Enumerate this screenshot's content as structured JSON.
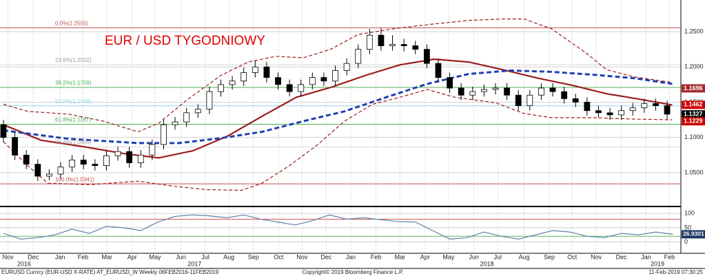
{
  "chart_data": [
    {
      "type": "candlestick",
      "title": "EUR / USD TYGODNIOWY",
      "x": [
        0,
        2,
        4,
        6,
        8,
        10,
        12,
        14,
        16,
        18,
        20,
        22,
        24,
        26,
        28,
        30,
        32,
        34,
        36,
        38,
        40,
        42,
        44,
        46,
        48,
        50,
        52,
        54,
        56,
        58,
        60,
        62,
        64,
        66,
        68,
        70,
        72,
        74,
        76,
        78,
        80,
        82,
        84,
        86,
        88,
        90,
        92,
        94,
        96,
        98,
        100,
        102,
        104,
        106,
        108,
        110,
        112,
        114,
        116
      ],
      "open": [
        1.118,
        1.1,
        1.075,
        1.062,
        1.045,
        1.048,
        1.058,
        1.068,
        1.062,
        1.06,
        1.074,
        1.08,
        1.064,
        1.075,
        1.09,
        1.118,
        1.122,
        1.135,
        1.14,
        1.165,
        1.175,
        1.18,
        1.192,
        1.2,
        1.185,
        1.175,
        1.165,
        1.175,
        1.185,
        1.18,
        1.195,
        1.205,
        1.225,
        1.245,
        1.23,
        1.232,
        1.23,
        1.225,
        1.205,
        1.185,
        1.17,
        1.16,
        1.165,
        1.168,
        1.17,
        1.16,
        1.145,
        1.16,
        1.17,
        1.165,
        1.155,
        1.15,
        1.138,
        1.135,
        1.132,
        1.138,
        1.142,
        1.148,
        1.145
      ],
      "high": [
        1.125,
        1.107,
        1.082,
        1.069,
        1.055,
        1.065,
        1.075,
        1.075,
        1.069,
        1.081,
        1.087,
        1.087,
        1.082,
        1.097,
        1.125,
        1.129,
        1.142,
        1.147,
        1.172,
        1.182,
        1.187,
        1.199,
        1.209,
        1.207,
        1.192,
        1.182,
        1.182,
        1.192,
        1.192,
        1.202,
        1.212,
        1.232,
        1.254,
        1.255,
        1.245,
        1.24,
        1.237,
        1.232,
        1.212,
        1.192,
        1.177,
        1.172,
        1.175,
        1.177,
        1.177,
        1.167,
        1.167,
        1.177,
        1.177,
        1.172,
        1.162,
        1.157,
        1.145,
        1.142,
        1.145,
        1.149,
        1.155,
        1.155,
        1.152
      ],
      "low": [
        1.093,
        1.068,
        1.055,
        1.038,
        1.039,
        1.041,
        1.051,
        1.055,
        1.053,
        1.053,
        1.067,
        1.057,
        1.057,
        1.068,
        1.083,
        1.111,
        1.115,
        1.128,
        1.133,
        1.158,
        1.168,
        1.173,
        1.185,
        1.178,
        1.168,
        1.158,
        1.158,
        1.168,
        1.173,
        1.173,
        1.188,
        1.198,
        1.218,
        1.223,
        1.223,
        1.222,
        1.218,
        1.198,
        1.178,
        1.163,
        1.153,
        1.153,
        1.158,
        1.161,
        1.153,
        1.138,
        1.138,
        1.153,
        1.158,
        1.148,
        1.143,
        1.131,
        1.128,
        1.125,
        1.125,
        1.131,
        1.135,
        1.138,
        1.126
      ],
      "close": [
        1.1,
        1.075,
        1.062,
        1.045,
        1.048,
        1.058,
        1.068,
        1.062,
        1.06,
        1.074,
        1.08,
        1.064,
        1.075,
        1.09,
        1.118,
        1.122,
        1.135,
        1.14,
        1.165,
        1.175,
        1.18,
        1.192,
        1.2,
        1.185,
        1.175,
        1.165,
        1.175,
        1.185,
        1.18,
        1.195,
        1.205,
        1.225,
        1.245,
        1.23,
        1.232,
        1.23,
        1.225,
        1.205,
        1.185,
        1.17,
        1.16,
        1.165,
        1.168,
        1.17,
        1.16,
        1.145,
        1.16,
        1.17,
        1.165,
        1.155,
        1.15,
        1.138,
        1.135,
        1.132,
        1.138,
        1.142,
        1.148,
        1.145,
        1.133
      ],
      "up_color": "#ffffff",
      "down_color": "#000000",
      "xlim": [
        -0.6,
        118.4
      ],
      "ylim": [
        1.004,
        1.293
      ],
      "yticks": [
        {
          "value": 1.05,
          "label": "1.0500"
        },
        {
          "value": 1.1,
          "label": "1.1000"
        },
        {
          "value": 1.15,
          "label": "1.1500"
        },
        {
          "value": 1.2,
          "label": "1.2000"
        },
        {
          "value": 1.25,
          "label": "1.2500"
        }
      ],
      "xticks": [
        {
          "value": 0.8,
          "label": "Nov"
        },
        {
          "value": 5.2,
          "label": "Dec"
        },
        {
          "value": 9.9,
          "label": "Jan"
        },
        {
          "value": 13.9,
          "label": "Feb"
        },
        {
          "value": 18.1,
          "label": "Mar"
        },
        {
          "value": 22.5,
          "label": "Apr"
        },
        {
          "value": 26.5,
          "label": "May"
        },
        {
          "value": 31,
          "label": "Jun"
        },
        {
          "value": 35.3,
          "label": "Jul"
        },
        {
          "value": 39.4,
          "label": "Aug"
        },
        {
          "value": 43.7,
          "label": "Sep"
        },
        {
          "value": 48.1,
          "label": "Oct"
        },
        {
          "value": 52.2,
          "label": "Nov"
        },
        {
          "value": 56.4,
          "label": "Dec"
        },
        {
          "value": 60.7,
          "label": "Jan"
        },
        {
          "value": 65.1,
          "label": "Feb"
        },
        {
          "value": 69.3,
          "label": "Mar"
        },
        {
          "value": 73.7,
          "label": "Apr"
        },
        {
          "value": 77.8,
          "label": "May"
        },
        {
          "value": 82.2,
          "label": "Jun"
        },
        {
          "value": 86.4,
          "label": "Jul"
        },
        {
          "value": 91,
          "label": "Aug"
        },
        {
          "value": 95.4,
          "label": "Sep"
        },
        {
          "value": 99.4,
          "label": "Oct"
        },
        {
          "value": 103.6,
          "label": "Nov"
        },
        {
          "value": 108,
          "label": "Dec"
        },
        {
          "value": 112.3,
          "label": "Jan"
        },
        {
          "value": 116.4,
          "label": "Feb"
        }
      ],
      "year_ticks": [
        {
          "value": 3.6,
          "label": "2016"
        },
        {
          "value": 33.4,
          "label": "2017"
        },
        {
          "value": 84.5,
          "label": "2018"
        },
        {
          "value": 114.3,
          "label": "2019"
        }
      ],
      "grid": true,
      "overlays": [
        {
          "color": "#9b1c1c",
          "width": 2.2,
          "dash": "none",
          "x": [
            0,
            6.6,
            13.9,
            21.1,
            27.1,
            33.1,
            39.2,
            45.2,
            51.2,
            57.2,
            63.3,
            69.3,
            75.3,
            81.3,
            87.3,
            93.4,
            99.4,
            105.4,
            111.4,
            116.9
          ],
          "values": [
            1.118,
            1.096,
            1.087,
            1.077,
            1.071,
            1.081,
            1.102,
            1.13,
            1.157,
            1.171,
            1.188,
            1.203,
            1.211,
            1.207,
            1.196,
            1.184,
            1.174,
            1.162,
            1.154,
            1.146
          ]
        },
        {
          "color": "#1f3fb4",
          "width": 3,
          "dash": "7 4",
          "x": [
            0,
            11.4,
            23.5,
            30.7,
            38,
            45.2,
            52.4,
            59.6,
            66.9,
            74.1,
            81.3,
            88.6,
            95.8,
            103,
            110.2,
            116.9
          ],
          "values": [
            1.11,
            1.098,
            1.092,
            1.092,
            1.099,
            1.108,
            1.123,
            1.137,
            1.157,
            1.176,
            1.19,
            1.195,
            1.193,
            1.189,
            1.184,
            1.176
          ]
        },
        {
          "color": "#9b1c1c",
          "width": 1.2,
          "dash": "5 3",
          "x": [
            0,
            4.2,
            11.4,
            17.5,
            23.5,
            27.1,
            31.9,
            38,
            42.8,
            47.6,
            52.4,
            57.2,
            62,
            68.1,
            74.1,
            81.3,
            87.3,
            91,
            95.8,
            101.8,
            105.4,
            110.2,
            116.9
          ],
          "values": [
            1.147,
            1.137,
            1.133,
            1.123,
            1.108,
            1.12,
            1.152,
            1.188,
            1.207,
            1.215,
            1.213,
            1.225,
            1.246,
            1.254,
            1.26,
            1.266,
            1.268,
            1.268,
            1.254,
            1.22,
            1.196,
            1.186,
            1.178
          ]
        },
        {
          "color": "#9b1c1c",
          "width": 1.2,
          "dash": "5 3",
          "x": [
            0,
            4.2,
            7.8,
            15.1,
            23.5,
            29.5,
            35.5,
            41.6,
            45.2,
            50,
            54.8,
            59.6,
            64.5,
            69.3,
            74.1,
            78.9,
            86.1,
            91,
            95.8,
            103,
            110.2,
            116.9
          ],
          "values": [
            1.094,
            1.06,
            1.035,
            1.033,
            1.038,
            1.031,
            1.026,
            1.025,
            1.035,
            1.06,
            1.089,
            1.123,
            1.147,
            1.157,
            1.168,
            1.157,
            1.149,
            1.134,
            1.128,
            1.128,
            1.126,
            1.125
          ]
        }
      ],
      "levels": [
        {
          "label": "0.0%(1.2555)",
          "value": 1.2555,
          "color": "#c0504d"
        },
        {
          "label": "23.6%(1.2032)",
          "value": 1.2032,
          "color": "#d9d9d9"
        },
        {
          "label": "38.2%(1.1709)",
          "value": 1.1709,
          "color": "#4caf50"
        },
        {
          "label": "50.0%(1.1448)",
          "value": 1.1448,
          "color": "#8fd3e8"
        },
        {
          "label": "61.8%(1.1187)",
          "value": 1.1187,
          "color": "#4caf50"
        },
        {
          "label": "76.4%(1.0864)",
          "value": 1.0864,
          "color": "#d9d9d9"
        },
        {
          "label": "100.0%(1.0341)",
          "value": 1.0341,
          "color": "#c0504d"
        }
      ],
      "price_labels": [
        {
          "value": 1.1696,
          "color": "#a52a2a"
        },
        {
          "value": 1.1462,
          "color": "#cc0000"
        },
        {
          "value": 1.1327,
          "color": "#000000"
        },
        {
          "value": 1.1229,
          "color": "#cc0000"
        }
      ]
    },
    {
      "type": "line",
      "x": [
        0,
        3,
        6,
        9,
        12,
        15,
        18,
        21,
        24,
        27,
        30,
        33,
        36,
        39,
        42,
        45,
        48,
        51,
        54,
        57,
        60,
        63,
        66,
        69,
        72,
        75,
        78,
        81,
        84,
        87,
        90,
        93,
        96,
        99,
        102,
        105,
        108,
        111,
        114,
        117
      ],
      "values": [
        30,
        10,
        15,
        25,
        45,
        30,
        55,
        50,
        40,
        70,
        90,
        95,
        92,
        85,
        95,
        80,
        70,
        60,
        75,
        95,
        80,
        85,
        78,
        72,
        70,
        40,
        10,
        15,
        35,
        20,
        10,
        25,
        40,
        35,
        20,
        15,
        30,
        25,
        35,
        26.9301
      ],
      "color": "#5a7fa8",
      "xlim": [
        -0.6,
        118.4
      ],
      "ylim": [
        -40,
        120
      ],
      "yticks": [
        0,
        50,
        100
      ],
      "hlines": [
        {
          "value": 80,
          "color": "#d9534f"
        },
        {
          "value": 20,
          "color": "#5cb85c"
        }
      ],
      "label_color": "#1f3864"
    }
  ],
  "footer": {
    "left": "EURUSD Curncy (EUR-USD X-RATE) AT_EURUSD_W  Weekly 06FEB2016-11FEB2019",
    "center": "Copyright© 2019 Bloomberg Finance L.P.",
    "right": "11-Feb-2019 07:30:25"
  }
}
